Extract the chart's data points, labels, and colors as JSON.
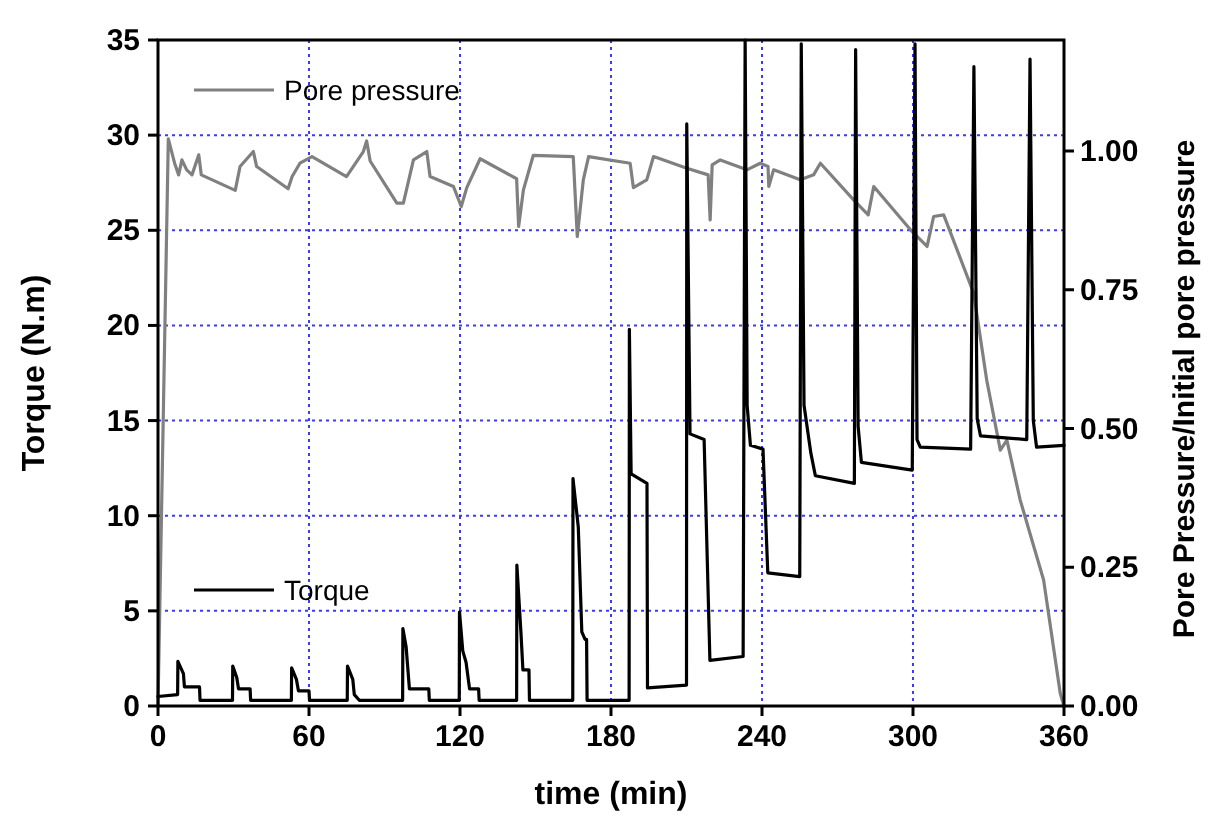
{
  "chart_data": {
    "type": "line",
    "xlabel": "time (min)",
    "ylabel": "Torque (N.m)",
    "y2label": "Pore Pressure/Initial pore pressure",
    "xlim": [
      0,
      360
    ],
    "xticks": [
      0,
      60,
      120,
      180,
      240,
      300,
      360
    ],
    "ylim": [
      0,
      35
    ],
    "yticks": [
      0,
      5,
      10,
      15,
      20,
      25,
      30,
      35
    ],
    "y2lim": [
      0,
      1.2
    ],
    "y2ticks": [
      {
        "value": 0,
        "label": "0.00"
      },
      {
        "value": 0.25,
        "label": "0.25"
      },
      {
        "value": 0.5,
        "label": "0.50"
      },
      {
        "value": 0.75,
        "label": "0.75"
      },
      {
        "value": 1,
        "label": "1.00"
      }
    ],
    "grid": true,
    "legend": "left",
    "marker": "none",
    "line_style": "solid",
    "series": [
      {
        "name": "Pore pressure",
        "color": "#808080",
        "axis": "y2",
        "x": [
          0,
          4.1,
          6.6,
          8.2,
          9.5,
          11.4,
          13.5,
          16.2,
          17.2,
          30.7,
          32.6,
          37.9,
          39.2,
          51.7,
          53.3,
          56.4,
          61.2,
          74.9,
          81.6,
          82.9,
          84.3,
          94.9,
          97.5,
          101.5,
          106.8,
          108.1,
          117.4,
          120.5,
          122.7,
          128.0,
          142.5,
          143.3,
          145.2,
          149.1,
          165.0,
          166.6,
          169.0,
          171.1,
          187.6,
          188.9,
          194.2,
          196.9,
          199.5,
          210.1,
          218.6,
          219.4,
          220.2,
          223.4,
          234.0,
          239.3,
          242.4,
          242.7,
          244.6,
          255.2,
          260.5,
          263.2,
          276.4,
          282.2,
          284.4,
          299.0,
          305.6,
          308.2,
          312.2,
          324.1,
          329.3,
          334.7,
          337.3,
          342.6,
          351.9,
          358.5,
          360
        ],
        "values": [
          0,
          1.022,
          0.978,
          0.957,
          0.984,
          0.966,
          0.957,
          0.993,
          0.957,
          0.929,
          0.972,
          0.999,
          0.972,
          0.932,
          0.954,
          0.978,
          0.99,
          0.954,
          0.999,
          1.018,
          0.982,
          0.906,
          0.906,
          0.984,
          0.999,
          0.954,
          0.936,
          0.9,
          0.934,
          0.986,
          0.95,
          0.864,
          0.93,
          0.992,
          0.99,
          0.846,
          0.948,
          0.99,
          0.978,
          0.934,
          0.948,
          0.99,
          0.986,
          0.969,
          0.957,
          0.876,
          0.975,
          0.984,
          0.966,
          0.978,
          0.972,
          0.936,
          0.966,
          0.948,
          0.957,
          0.978,
          0.912,
          0.885,
          0.936,
          0.858,
          0.828,
          0.882,
          0.885,
          0.744,
          0.587,
          0.461,
          0.479,
          0.371,
          0.227,
          0.023,
          0
        ]
      },
      {
        "name": "Torque",
        "color": "#000000",
        "x": [
          0,
          7.8,
          7.9,
          10.1,
          10.5,
          16.5,
          16.7,
          29.6,
          29.7,
          31.3,
          32,
          36.6,
          36.8,
          53,
          53.1,
          55,
          55.8,
          60,
          60.2,
          75.2,
          75.3,
          77.4,
          78,
          80,
          97.2,
          97.3,
          98.6,
          99.9,
          107.6,
          107.8,
          119.7,
          119.8,
          121.1,
          122.4,
          123.8,
          127.4,
          127.6,
          142.5,
          142.6,
          144.2,
          145,
          147.4,
          147.6,
          164.8,
          164.9,
          167,
          168.4,
          169.7,
          170.3,
          170.5,
          187.2,
          187.3,
          188,
          194.3,
          194.5,
          210,
          210.1,
          211.4,
          217,
          219.3,
          232.5,
          233.3,
          234.1,
          235.4,
          240.4,
          242.3,
          255,
          255.6,
          256.7,
          259.4,
          261.2,
          276.7,
          277.2,
          278.2,
          279.5,
          299.7,
          300.8,
          301.6,
          302.9,
          322.9,
          324.2,
          325.5,
          326.8,
          345.2,
          346.5,
          347.8,
          349.1,
          360
        ],
        "values": [
          0.5,
          0.6,
          2.35,
          1.7,
          1.0,
          1.0,
          0.3,
          0.3,
          2.1,
          1.5,
          0.9,
          0.9,
          0.3,
          0.3,
          2.0,
          1.4,
          0.8,
          0.8,
          0.3,
          0.3,
          2.1,
          1.4,
          0.6,
          0.3,
          0.3,
          4.07,
          3.1,
          0.9,
          0.9,
          0.3,
          0.3,
          4.94,
          2.9,
          2.3,
          0.9,
          0.9,
          0.3,
          0.3,
          7.4,
          3.9,
          1.9,
          1.9,
          0.3,
          0.3,
          11.95,
          9.4,
          3.9,
          3.5,
          3.5,
          0.3,
          0.3,
          19.8,
          12.2,
          11.7,
          0.95,
          1.1,
          30.6,
          14.3,
          14.0,
          2.4,
          2.6,
          35.0,
          15.8,
          13.7,
          13.5,
          7.0,
          6.8,
          34.8,
          15.8,
          13.3,
          12.1,
          11.7,
          34.5,
          14.7,
          12.8,
          12.4,
          34.8,
          14.0,
          13.6,
          13.5,
          33.6,
          15.1,
          14.2,
          14.0,
          34.0,
          15.0,
          13.6,
          13.7
        ]
      }
    ]
  }
}
